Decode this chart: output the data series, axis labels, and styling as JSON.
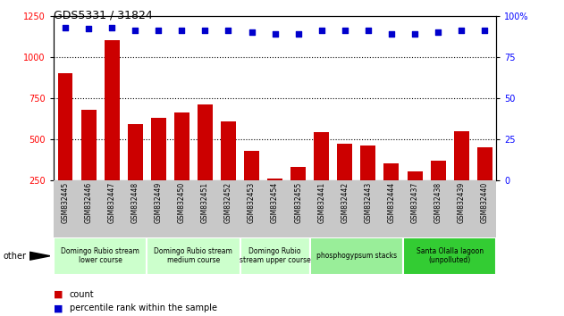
{
  "title": "GDS5331 / 31824",
  "samples": [
    "GSM832445",
    "GSM832446",
    "GSM832447",
    "GSM832448",
    "GSM832449",
    "GSM832450",
    "GSM832451",
    "GSM832452",
    "GSM832453",
    "GSM832454",
    "GSM832455",
    "GSM832441",
    "GSM832442",
    "GSM832443",
    "GSM832444",
    "GSM832437",
    "GSM832438",
    "GSM832439",
    "GSM832440"
  ],
  "counts": [
    900,
    680,
    1100,
    590,
    630,
    660,
    710,
    610,
    430,
    260,
    330,
    540,
    470,
    460,
    350,
    305,
    370,
    550,
    450
  ],
  "percentiles": [
    93,
    92,
    93,
    91,
    91,
    91,
    91,
    91,
    90,
    89,
    89,
    91,
    91,
    91,
    89,
    89,
    90,
    91,
    91
  ],
  "bar_color": "#cc0000",
  "dot_color": "#0000cc",
  "ylim_left": [
    250,
    1250
  ],
  "ylim_right": [
    0,
    100
  ],
  "yticks_left": [
    250,
    500,
    750,
    1000,
    1250
  ],
  "yticks_right": [
    0,
    25,
    50,
    75,
    100
  ],
  "groups": [
    {
      "label": "Domingo Rubio stream\nlower course",
      "start": 0,
      "end": 4,
      "color": "#ccffcc"
    },
    {
      "label": "Domingo Rubio stream\nmedium course",
      "start": 4,
      "end": 8,
      "color": "#ccffcc"
    },
    {
      "label": "Domingo Rubio\nstream upper course",
      "start": 8,
      "end": 11,
      "color": "#ccffcc"
    },
    {
      "label": "phosphogypsum stacks",
      "start": 11,
      "end": 15,
      "color": "#99ee99"
    },
    {
      "label": "Santa Olalla lagoon\n(unpolluted)",
      "start": 15,
      "end": 19,
      "color": "#33cc33"
    }
  ],
  "legend_count_label": "count",
  "legend_pct_label": "percentile rank within the sample",
  "other_label": "other",
  "background_color": "#ffffff",
  "tick_area_color": "#c8c8c8"
}
